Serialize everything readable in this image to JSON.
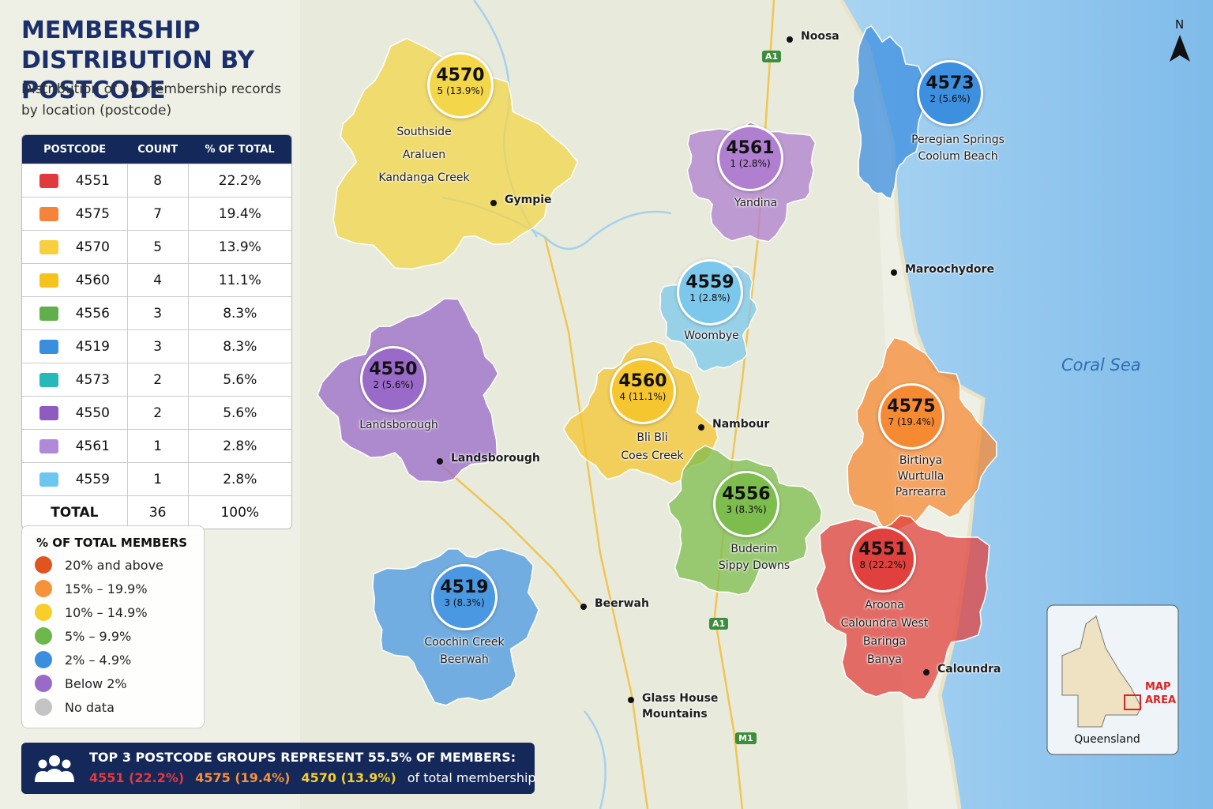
{
  "header": {
    "title": "MEMBERSHIP DISTRIBUTION BY POSTCODE",
    "subtitle": "Distribution of 36 membership records by location (postcode)"
  },
  "table": {
    "columns": [
      "POSTCODE",
      "COUNT",
      "% OF TOTAL"
    ],
    "rows": [
      {
        "postcode": "4551",
        "count": 8,
        "percent": "22.2%",
        "color": "#e03a3e"
      },
      {
        "postcode": "4575",
        "count": 7,
        "percent": "19.4%",
        "color": "#f5843a"
      },
      {
        "postcode": "4570",
        "count": 5,
        "percent": "13.9%",
        "color": "#f8cf3d"
      },
      {
        "postcode": "4560",
        "count": 4,
        "percent": "11.1%",
        "color": "#f6c21e"
      },
      {
        "postcode": "4556",
        "count": 3,
        "percent": "8.3%",
        "color": "#5fb04a"
      },
      {
        "postcode": "4519",
        "count": 3,
        "percent": "8.3%",
        "color": "#3a8ee0"
      },
      {
        "postcode": "4573",
        "count": 2,
        "percent": "5.6%",
        "color": "#27b8b8"
      },
      {
        "postcode": "4550",
        "count": 2,
        "percent": "5.6%",
        "color": "#8e5cc0"
      },
      {
        "postcode": "4561",
        "count": 1,
        "percent": "2.8%",
        "color": "#b08ad8"
      },
      {
        "postcode": "4559",
        "count": 1,
        "percent": "2.8%",
        "color": "#6cc6ef"
      }
    ],
    "total": {
      "label": "TOTAL",
      "count": 36,
      "percent": "100%"
    }
  },
  "legend": {
    "title": "% OF TOTAL MEMBERS",
    "items": [
      {
        "label": "20% and above",
        "color": "#e0551f"
      },
      {
        "label": "15% – 19.9%",
        "color": "#f5923a"
      },
      {
        "label": "10% – 14.9%",
        "color": "#f8cf2a"
      },
      {
        "label": "5% – 9.9%",
        "color": "#6cb84a"
      },
      {
        "label": "2% – 4.9%",
        "color": "#3a8ee0"
      },
      {
        "label": "Below 2%",
        "color": "#9a6ac8"
      },
      {
        "label": "No data",
        "color": "#c4c4c4"
      }
    ]
  },
  "regions": [
    {
      "postcode": "4570",
      "label": "5 (13.9%)",
      "suburbs": [
        "Southside",
        "Araluen",
        "Kandanga Creek"
      ],
      "color": "#f3d64a"
    },
    {
      "postcode": "4573",
      "label": "2 (5.6%)",
      "suburbs": [
        "Peregian Springs",
        "Coolum Beach"
      ],
      "color": "#3d8fe0"
    },
    {
      "postcode": "4561",
      "label": "1 (2.8%)",
      "suburbs": [
        "Yandina"
      ],
      "color": "#b07fd0"
    },
    {
      "postcode": "4559",
      "label": "1 (2.8%)",
      "suburbs": [
        "Woombye"
      ],
      "color": "#7cc8ec"
    },
    {
      "postcode": "4550",
      "label": "2 (5.6%)",
      "suburbs": [
        "Landsborough"
      ],
      "color": "#9a6ac8"
    },
    {
      "postcode": "4560",
      "label": "4 (11.1%)",
      "suburbs": [
        "Bli Bli",
        "Coes Creek"
      ],
      "color": "#f5c630"
    },
    {
      "postcode": "4575",
      "label": "7 (19.4%)",
      "suburbs": [
        "Birtinya",
        "Wurtulla",
        "Parrearra"
      ],
      "color": "#f58a33"
    },
    {
      "postcode": "4556",
      "label": "3 (8.3%)",
      "suburbs": [
        "Buderim",
        "Sippy Downs"
      ],
      "color": "#7dbd4e"
    },
    {
      "postcode": "4551",
      "label": "8 (22.2%)",
      "suburbs": [
        "Aroona",
        "Caloundra West",
        "Baringa",
        "Banya"
      ],
      "color": "#e0413e"
    },
    {
      "postcode": "4519",
      "label": "3 (8.3%)",
      "suburbs": [
        "Coochin Creek",
        "Beerwah"
      ],
      "color": "#4a98e2"
    }
  ],
  "places": [
    "Noosa",
    "Gympie",
    "Maroochydore",
    "Nambour",
    "Landsborough",
    "Beerwah",
    "Glass House Mountains",
    "Caloundra"
  ],
  "roads": [
    "A1",
    "A1",
    "M1"
  ],
  "sea": "Coral Sea",
  "north": "N",
  "inset": {
    "label": "Queensland",
    "area": "MAP AREA"
  },
  "footer": {
    "headline": "TOP 3 POSTCODE GROUPS REPRESENT 55.5% OF MEMBERS:",
    "items": [
      {
        "text": "4551 (22.2%)",
        "color": "#e8383c"
      },
      {
        "text": "4575 (19.4%)",
        "color": "#f5923a"
      },
      {
        "text": "4570 (13.9%)",
        "color": "#f8cf2a"
      }
    ],
    "tail": "of total membership"
  }
}
